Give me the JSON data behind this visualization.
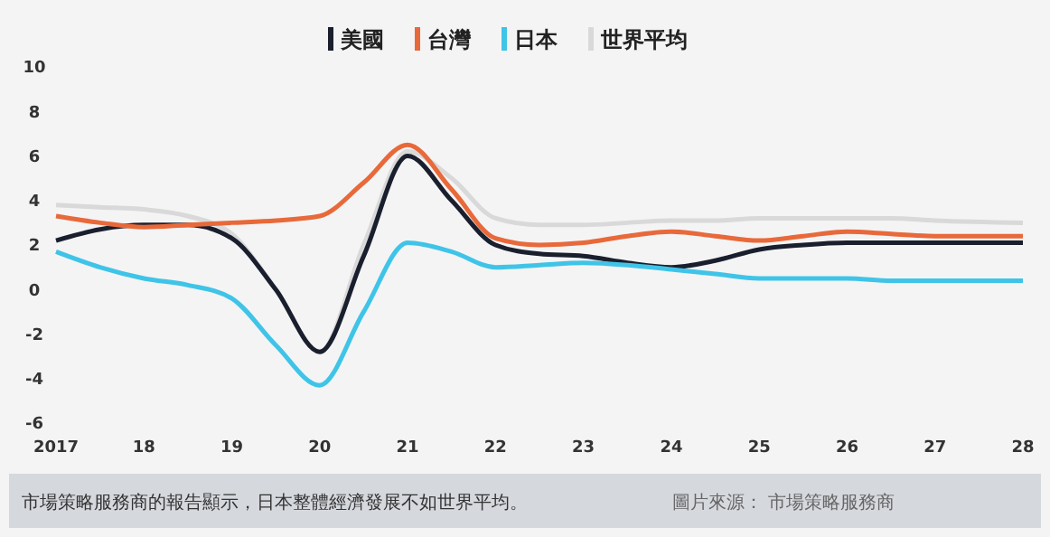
{
  "chart_data": {
    "type": "line",
    "x": [
      2017,
      2017.5,
      2018,
      2018.5,
      2019,
      2019.5,
      2020,
      2020.5,
      2021,
      2021.5,
      2022,
      2022.5,
      2023,
      2023.5,
      2024,
      2024.5,
      2025,
      2025.5,
      2026,
      2026.5,
      2027,
      2028
    ],
    "series": [
      {
        "name": "美國",
        "color": "#1a1f2e",
        "values": [
          2.2,
          2.7,
          2.9,
          2.9,
          2.3,
          0,
          -2.8,
          1.5,
          6,
          4,
          2,
          1.6,
          1.5,
          1.2,
          1,
          1.3,
          1.8,
          2,
          2.1,
          2.1,
          2.1,
          2.1
        ]
      },
      {
        "name": "台灣",
        "color": "#e8693a",
        "values": [
          3.3,
          3,
          2.8,
          2.9,
          3,
          3.1,
          3.3,
          4.8,
          6.5,
          4.5,
          2.3,
          2,
          2.1,
          2.4,
          2.6,
          2.4,
          2.2,
          2.4,
          2.6,
          2.5,
          2.4,
          2.4
        ]
      },
      {
        "name": "日本",
        "color": "#3fc4e8",
        "values": [
          1.7,
          1,
          0.5,
          0.2,
          -0.4,
          -2.5,
          -4.3,
          -1,
          2.1,
          1.7,
          1,
          1.1,
          1.2,
          1.1,
          0.9,
          0.7,
          0.5,
          0.5,
          0.5,
          0.4,
          0.4,
          0.4
        ]
      },
      {
        "name": "世界平均",
        "color": "#d9d9d9",
        "values": [
          3.8,
          3.7,
          3.6,
          3.3,
          2.5,
          0,
          -2.8,
          2,
          6.2,
          5,
          3.2,
          2.9,
          2.9,
          3,
          3.1,
          3.1,
          3.2,
          3.2,
          3.2,
          3.2,
          3.1,
          3
        ]
      }
    ],
    "xlim": [
      2017,
      2028
    ],
    "xticks": [
      {
        "value": 2017,
        "label": "2017"
      },
      {
        "value": 2018,
        "label": "18"
      },
      {
        "value": 2019,
        "label": "19"
      },
      {
        "value": 2020,
        "label": "20"
      },
      {
        "value": 2021,
        "label": "21"
      },
      {
        "value": 2022,
        "label": "22"
      },
      {
        "value": 2023,
        "label": "23"
      },
      {
        "value": 2024,
        "label": "24"
      },
      {
        "value": 2025,
        "label": "25"
      },
      {
        "value": 2026,
        "label": "26"
      },
      {
        "value": 2027,
        "label": "27"
      },
      {
        "value": 2028,
        "label": "28"
      }
    ],
    "ylim": [
      -6,
      10
    ],
    "yticks": [
      -6,
      -4,
      -2,
      0,
      2,
      4,
      6,
      8,
      10
    ],
    "grid": false,
    "legend": "top",
    "marker": "none",
    "line_style": "solid",
    "annotations": [
      "市場策略服務商的報告顯示，日本整體經濟發展不如世界平均。",
      "圖片來源： 市場策略服務商"
    ]
  }
}
